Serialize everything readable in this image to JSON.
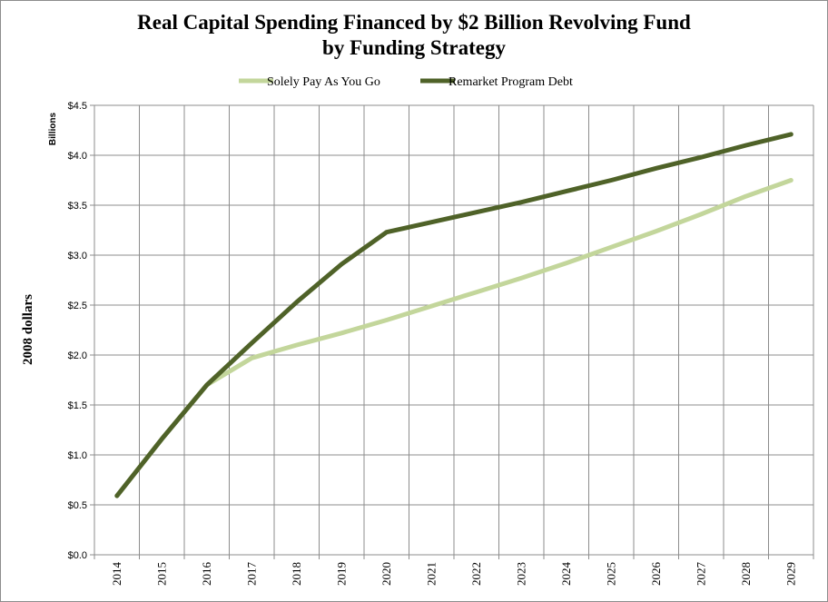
{
  "chart_data": {
    "type": "line",
    "title": "Real Capital Spending Financed by $2 Billion Revolving Fund",
    "subtitle": "by Funding Strategy",
    "xlabel": "",
    "ylabel": "2008 dollars",
    "y_unit_label": "Billions",
    "categories": [
      "2014",
      "2015",
      "2016",
      "2017",
      "2018",
      "2019",
      "2020",
      "2021",
      "2022",
      "2023",
      "2024",
      "2025",
      "2026",
      "2027",
      "2028",
      "2029"
    ],
    "ylim": [
      0,
      4.5
    ],
    "y_ticks": [
      {
        "value": 0,
        "label": "$0.0"
      },
      {
        "value": 0.5,
        "label": "$0.5"
      },
      {
        "value": 1.0,
        "label": "$1.0"
      },
      {
        "value": 1.5,
        "label": "$1.5"
      },
      {
        "value": 2.0,
        "label": "$2.0"
      },
      {
        "value": 2.5,
        "label": "$2.5"
      },
      {
        "value": 3.0,
        "label": "$3.0"
      },
      {
        "value": 3.5,
        "label": "$3.5"
      },
      {
        "value": 4.0,
        "label": "$4.0"
      },
      {
        "value": 4.5,
        "label": "$4.5"
      }
    ],
    "grid": true,
    "legend_position": "top-center",
    "series": [
      {
        "name": "Solely Pay As You Go",
        "color": "#c3d69b",
        "values": [
          0.59,
          1.16,
          1.7,
          1.97,
          2.1,
          2.22,
          2.35,
          2.49,
          2.63,
          2.77,
          2.92,
          3.08,
          3.24,
          3.41,
          3.59,
          3.75
        ]
      },
      {
        "name": "Remarket Program Debt",
        "color": "#4f6228",
        "values": [
          0.59,
          1.16,
          1.7,
          2.12,
          2.53,
          2.91,
          3.23,
          3.33,
          3.43,
          3.53,
          3.64,
          3.75,
          3.87,
          3.98,
          4.1,
          4.21
        ]
      }
    ]
  }
}
